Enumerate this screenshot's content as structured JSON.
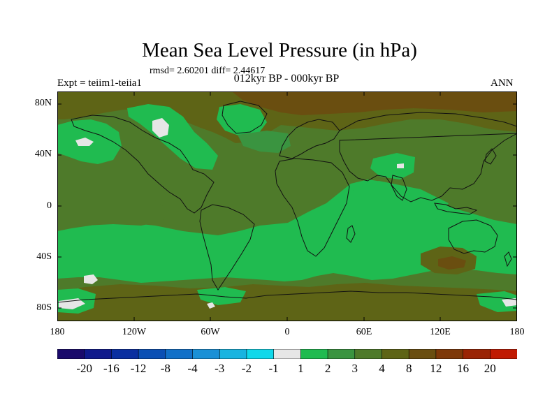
{
  "title": "Mean Sea Level Pressure (in hPa)",
  "stats": "rmsd= 2.60201 diff= 2.44617",
  "subtitle": "012kyr BP - 000kyr BP",
  "left_label": "Expt = teiim1-teiia1",
  "right_label": "ANN",
  "lat_labels": [
    "80N",
    "40N",
    "0",
    "40S",
    "80S"
  ],
  "lon_labels": [
    "180",
    "120W",
    "60W",
    "0",
    "60E",
    "120E",
    "180"
  ],
  "colorbar": {
    "labels": [
      "-20",
      "-16",
      "-12",
      "-8",
      "-4",
      "-3",
      "-2",
      "-1",
      "1",
      "2",
      "3",
      "4",
      "8",
      "12",
      "16",
      "20"
    ],
    "colors": [
      "#1a0a6b",
      "#101a8c",
      "#0a2fa0",
      "#0a4fb4",
      "#1170c8",
      "#1a90d6",
      "#18b4e0",
      "#10d8ea",
      "#e6e6e6",
      "#20bb50",
      "#3a9440",
      "#4e7a2a",
      "#5e6416",
      "#6a4e10",
      "#7e3808",
      "#9a2404",
      "#c01a02"
    ]
  },
  "map_colors": {
    "ocean_bg": "#4e7a2a",
    "green": "#20bb50",
    "mid_green": "#3a9440",
    "brown": "#5e6416",
    "dark_brown": "#6a4e10",
    "white": "#e6e6e6"
  }
}
